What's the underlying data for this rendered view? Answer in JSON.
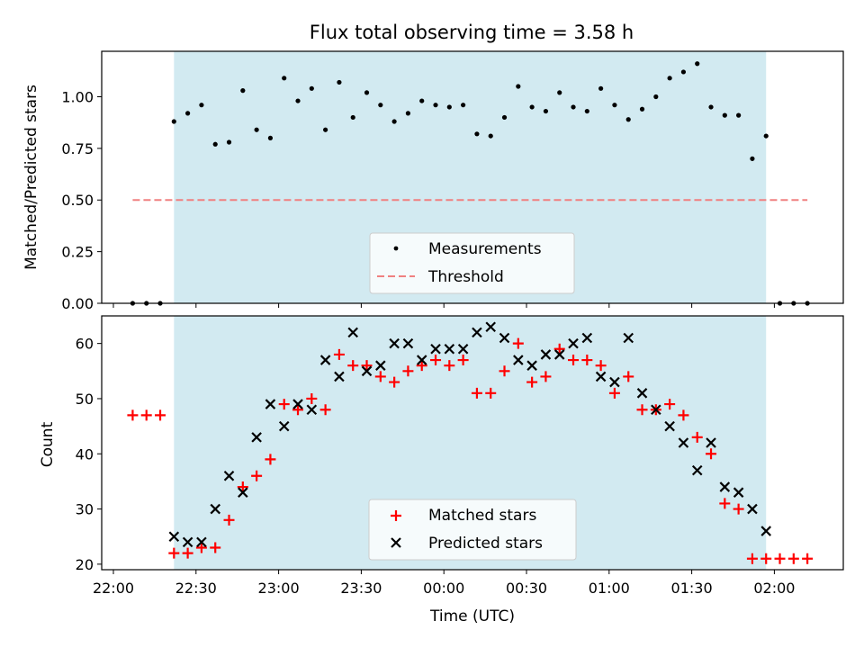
{
  "chart_data": [
    {
      "type": "scatter",
      "title": "Flux total observing time = 3.58 h",
      "ylabel": "Matched/Predicted stars",
      "xlabel": "",
      "ylim": [
        0,
        1.22
      ],
      "yticks": [
        "0.00",
        "0.25",
        "0.50",
        "0.75",
        "1.00"
      ],
      "grid": false,
      "legend_position": "lower-center",
      "shaded_interval": {
        "start": "22:22",
        "end": "01:57",
        "color": "#add8e6"
      },
      "series": [
        {
          "name": "Measurements",
          "marker": "dot",
          "color": "#000000",
          "x": [
            "22:07",
            "22:12",
            "22:17",
            "22:22",
            "22:27",
            "22:32",
            "22:37",
            "22:42",
            "22:47",
            "22:52",
            "22:57",
            "23:02",
            "23:07",
            "23:12",
            "23:17",
            "23:22",
            "23:27",
            "23:32",
            "23:37",
            "23:42",
            "23:47",
            "23:52",
            "23:57",
            "00:02",
            "00:07",
            "00:12",
            "00:17",
            "00:22",
            "00:27",
            "00:32",
            "00:37",
            "00:42",
            "00:47",
            "00:52",
            "00:57",
            "01:02",
            "01:07",
            "01:12",
            "01:17",
            "01:22",
            "01:27",
            "01:32",
            "01:37",
            "01:42",
            "01:47",
            "01:52",
            "01:57",
            "02:02",
            "02:07",
            "02:12"
          ],
          "y": [
            0,
            0,
            0,
            0.88,
            0.92,
            0.96,
            0.77,
            0.78,
            1.03,
            0.84,
            0.8,
            1.09,
            0.98,
            1.04,
            0.84,
            1.07,
            0.9,
            1.02,
            0.96,
            0.88,
            0.92,
            0.98,
            0.96,
            0.95,
            0.96,
            0.82,
            0.81,
            0.9,
            1.05,
            0.95,
            0.93,
            1.02,
            0.95,
            0.93,
            1.04,
            0.96,
            0.89,
            0.94,
            1.0,
            1.09,
            1.12,
            1.16,
            0.95,
            0.91,
            0.91,
            0.7,
            0.81,
            0,
            0,
            0
          ]
        },
        {
          "name": "Threshold",
          "marker": "dashed-line",
          "color": "#f08080",
          "x": [
            "22:07",
            "02:12"
          ],
          "y": [
            0.5,
            0.5
          ]
        }
      ]
    },
    {
      "type": "scatter",
      "xlabel": "Time (UTC)",
      "ylabel": "Count",
      "ylim": [
        19,
        65
      ],
      "yticks": [
        "20",
        "30",
        "40",
        "50",
        "60"
      ],
      "xticks": [
        "22:00",
        "22:30",
        "23:00",
        "23:30",
        "00:00",
        "00:30",
        "01:00",
        "01:30",
        "02:00"
      ],
      "grid": false,
      "legend_position": "lower-center",
      "shaded_interval": {
        "start": "22:22",
        "end": "01:57",
        "color": "#add8e6"
      },
      "series": [
        {
          "name": "Matched stars",
          "marker": "plus",
          "color": "#ff0000",
          "x": [
            "22:07",
            "22:12",
            "22:17",
            "22:22",
            "22:27",
            "22:32",
            "22:37",
            "22:42",
            "22:47",
            "22:52",
            "22:57",
            "23:02",
            "23:07",
            "23:12",
            "23:17",
            "23:22",
            "23:27",
            "23:32",
            "23:37",
            "23:42",
            "23:47",
            "23:52",
            "23:57",
            "00:02",
            "00:07",
            "00:12",
            "00:17",
            "00:22",
            "00:27",
            "00:32",
            "00:37",
            "00:42",
            "00:47",
            "00:52",
            "00:57",
            "01:02",
            "01:07",
            "01:12",
            "01:17",
            "01:22",
            "01:27",
            "01:32",
            "01:37",
            "01:42",
            "01:47",
            "01:52",
            "01:57",
            "02:02",
            "02:07",
            "02:12"
          ],
          "y": [
            47,
            47,
            47,
            22,
            22,
            23,
            23,
            28,
            34,
            36,
            39,
            49,
            48,
            50,
            48,
            58,
            56,
            56,
            54,
            53,
            55,
            56,
            57,
            56,
            57,
            51,
            51,
            55,
            60,
            53,
            54,
            59,
            57,
            57,
            56,
            51,
            54,
            48,
            48,
            49,
            47,
            43,
            40,
            31,
            30,
            21,
            21,
            21,
            21,
            21
          ]
        },
        {
          "name": "Predicted stars",
          "marker": "x",
          "color": "#000000",
          "x": [
            "22:22",
            "22:27",
            "22:32",
            "22:37",
            "22:42",
            "22:47",
            "22:52",
            "22:57",
            "23:02",
            "23:07",
            "23:12",
            "23:17",
            "23:22",
            "23:27",
            "23:32",
            "23:37",
            "23:42",
            "23:47",
            "23:52",
            "23:57",
            "00:02",
            "00:07",
            "00:12",
            "00:17",
            "00:22",
            "00:27",
            "00:32",
            "00:37",
            "00:42",
            "00:47",
            "00:52",
            "00:57",
            "01:02",
            "01:07",
            "01:12",
            "01:17",
            "01:22",
            "01:27",
            "01:32",
            "01:37",
            "01:42",
            "01:47",
            "01:52",
            "01:57"
          ],
          "y": [
            25,
            24,
            24,
            30,
            36,
            33,
            43,
            49,
            45,
            49,
            48,
            57,
            54,
            62,
            55,
            56,
            60,
            60,
            57,
            59,
            59,
            59,
            62,
            63,
            61,
            57,
            56,
            58,
            58,
            60,
            61,
            54,
            53,
            61,
            51,
            48,
            45,
            42,
            37,
            42,
            34,
            33,
            30,
            26
          ]
        }
      ]
    }
  ]
}
